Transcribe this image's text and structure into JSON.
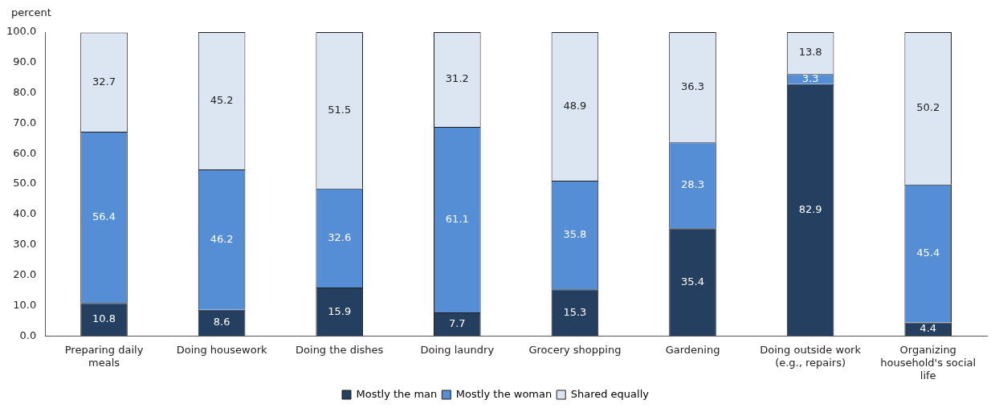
{
  "chart_data": {
    "type": "bar",
    "stacked": true,
    "ylabel": "percent",
    "categories": [
      "Preparing daily meals",
      "Doing housework",
      "Doing the dishes",
      "Doing laundry",
      "Grocery shopping",
      "Gardening",
      "Doing outside work (e.g., repairs)",
      "Organizing household's social life"
    ],
    "series": [
      {
        "name": "Mostly the man",
        "color": "#243f60",
        "values": [
          10.8,
          8.6,
          15.9,
          7.7,
          15.3,
          35.4,
          82.9,
          4.4
        ]
      },
      {
        "name": "Mostly the woman",
        "color": "#558ed5",
        "values": [
          56.4,
          46.2,
          32.6,
          61.1,
          35.8,
          28.3,
          3.3,
          45.4
        ]
      },
      {
        "name": "Shared equally",
        "color": "#dce6f2",
        "values": [
          32.7,
          45.2,
          51.5,
          31.2,
          48.9,
          36.3,
          13.8,
          50.2
        ]
      }
    ],
    "ylim": [
      0,
      100
    ],
    "yticks": [
      {
        "value": 0,
        "label": "0.0"
      },
      {
        "value": 10,
        "label": "10.0"
      },
      {
        "value": 20,
        "label": "20.0"
      },
      {
        "value": 30,
        "label": "30.0"
      },
      {
        "value": 40,
        "label": "40.0"
      },
      {
        "value": 50,
        "label": "50.0"
      },
      {
        "value": 60,
        "label": "60.0"
      },
      {
        "value": 70,
        "label": "70.0"
      },
      {
        "value": 80,
        "label": "80.0"
      },
      {
        "value": 90,
        "label": "90.0"
      },
      {
        "value": 100,
        "label": "100.0"
      }
    ],
    "grid": false,
    "legend": "bottom",
    "data_labels": true
  }
}
